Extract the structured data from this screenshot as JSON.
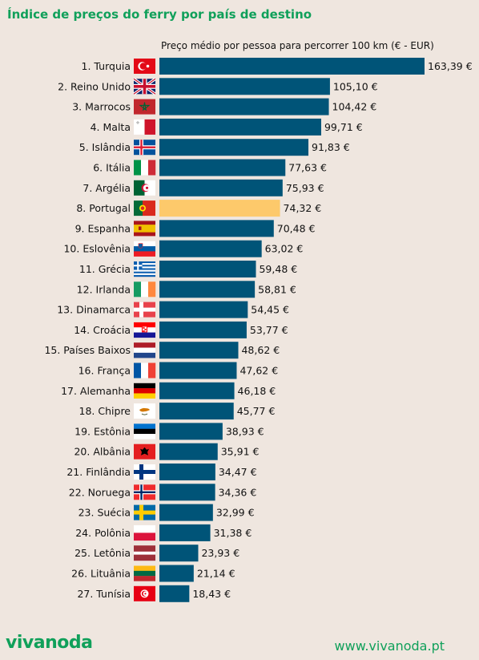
{
  "title": "Índice de preços do ferry por país de destino",
  "subtitle": "Preço médio por pessoa para percorrer 100 km (€ - EUR)",
  "brand": {
    "logo": "vivanoda",
    "url": "www.vivanoda.pt"
  },
  "colors": {
    "bar": "#005478",
    "highlight": "#fdc96b",
    "accent": "#10a05a",
    "background": "#efe6df"
  },
  "chart_data": {
    "type": "bar",
    "orientation": "horizontal",
    "title": "Índice de preços do ferry por país de destino",
    "subtitle": "Preço médio por pessoa para percorrer 100 km (€ - EUR)",
    "categories": [
      "1. Turquia",
      "2. Reino Unido",
      "3. Marrocos",
      "4. Malta",
      "5. Islândia",
      "6. Itália",
      "7. Argélia",
      "8. Portugal",
      "9. Espanha",
      "10. Eslovênia",
      "11. Grécia",
      "12. Irlanda",
      "13. Dinamarca",
      "14. Croácia",
      "15. Países Baixos",
      "16. França",
      "17. Alemanha",
      "18. Chipre",
      "19. Estônia",
      "20. Albânia",
      "21. Finlândia",
      "22. Noruega",
      "23. Suécia",
      "24. Polônia",
      "25. Letônia",
      "26. Lituânia",
      "27. Tunísia"
    ],
    "values": [
      163.39,
      105.1,
      104.42,
      99.71,
      91.83,
      77.63,
      75.93,
      74.32,
      70.48,
      63.02,
      59.48,
      58.81,
      54.45,
      53.77,
      48.62,
      47.62,
      46.18,
      45.77,
      38.93,
      35.91,
      34.47,
      34.36,
      32.99,
      31.38,
      23.93,
      21.14,
      18.43
    ],
    "value_labels": [
      "163,39 €",
      "105,10 €",
      "104,42 €",
      "99,71 €",
      "91,83 €",
      "77,63 €",
      "75,93 €",
      "74,32 €",
      "70,48 €",
      "63,02 €",
      "59,48 €",
      "58,81 €",
      "54,45 €",
      "53,77 €",
      "48,62 €",
      "47,62 €",
      "46,18 €",
      "45,77 €",
      "38,93 €",
      "35,91 €",
      "34,47 €",
      "34,36 €",
      "32,99 €",
      "31,38 €",
      "23,93 €",
      "21,14 €",
      "18,43 €"
    ],
    "flags": [
      "flag-turkey",
      "flag-united-kingdom",
      "flag-morocco",
      "flag-malta",
      "flag-iceland",
      "flag-italy",
      "flag-algeria",
      "flag-portugal",
      "flag-spain",
      "flag-slovenia",
      "flag-greece",
      "flag-ireland",
      "flag-denmark",
      "flag-croatia",
      "flag-netherlands",
      "flag-france",
      "flag-germany",
      "flag-cyprus",
      "flag-estonia",
      "flag-albania",
      "flag-finland",
      "flag-norway",
      "flag-sweden",
      "flag-poland",
      "flag-latvia",
      "flag-lithuania",
      "flag-tunisia"
    ],
    "highlight": "8. Portugal",
    "xlim": [
      0,
      163.39
    ],
    "grid": false
  }
}
